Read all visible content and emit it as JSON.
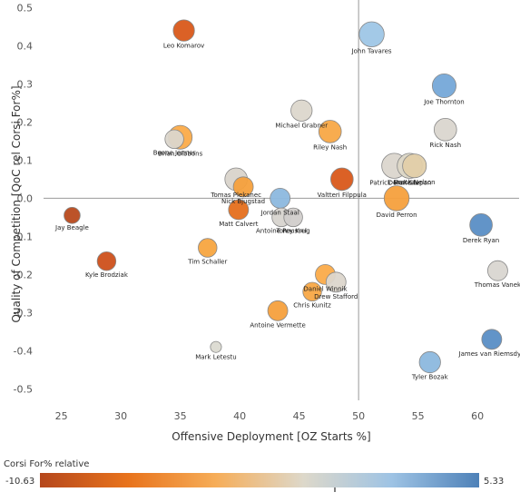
{
  "chart_data": {
    "type": "scatter",
    "xlabel": "Offensive Deployment [OZ Starts %]",
    "ylabel": "Quality of Competition [QoC rel Corsi For%]",
    "xlim": [
      23.5,
      63.5
    ],
    "ylim": [
      -0.53,
      0.52
    ],
    "x_ticks": [
      25,
      30,
      35,
      40,
      45,
      50,
      55,
      60
    ],
    "y_ticks": [
      0.5,
      0.4,
      0.3,
      0.2,
      0.1,
      0.0,
      -0.1,
      -0.2,
      -0.3,
      -0.4,
      -0.5
    ],
    "x_tick_labels": [
      "25",
      "30",
      "35",
      "40",
      "45",
      "50",
      "55",
      "60"
    ],
    "y_tick_labels": [
      "0.5",
      "0.4",
      "0.3",
      "0.2",
      "0.1",
      "0.0",
      "-0.1",
      "-0.2",
      "-0.3",
      "-0.4",
      "-0.5"
    ],
    "reference_lines": {
      "x": 50,
      "y": 0
    },
    "grid": false,
    "color_legend": {
      "title": "Corsi For% relative",
      "min": -10.63,
      "max": 5.33,
      "min_label": "-10.63",
      "max_label": "5.33",
      "colors": [
        "#b5471c",
        "#e8731c",
        "#f6ad58",
        "#ddd8ca",
        "#9ec3e4",
        "#4e81b8"
      ]
    },
    "points": [
      {
        "name": "Leo Komarov",
        "x": 35.3,
        "y": 0.44,
        "color": "#d9581a",
        "size": 0.55
      },
      {
        "name": "John Tavares",
        "x": 51.1,
        "y": 0.43,
        "color": "#9ec6e6",
        "size": 0.7
      },
      {
        "name": "Joe Thornton",
        "x": 57.2,
        "y": 0.295,
        "color": "#75a8d8",
        "size": 0.65
      },
      {
        "name": "Michael Grabner",
        "x": 45.2,
        "y": 0.23,
        "color": "#dcd7cc",
        "size": 0.55
      },
      {
        "name": "Rick Nash",
        "x": 57.3,
        "y": 0.18,
        "color": "#dad6cf",
        "size": 0.6
      },
      {
        "name": "Riley Nash",
        "x": 47.6,
        "y": 0.175,
        "color": "#f8a846",
        "size": 0.6
      },
      {
        "name": "Boone Jenner",
        "x": 34.5,
        "y": 0.155,
        "color": "#dbd6cc",
        "size": 0.45
      },
      {
        "name": "Brian Gibbons",
        "x": 35.0,
        "y": 0.16,
        "color": "#fbab49",
        "size": 0.65
      },
      {
        "name": "Patrick Marleau",
        "x": 53.0,
        "y": 0.085,
        "color": "#dbd6cd",
        "size": 0.7
      },
      {
        "name": "Derek Stepan",
        "x": 54.3,
        "y": 0.085,
        "color": "#dcd7c6",
        "size": 0.7
      },
      {
        "name": "Brock Nelson",
        "x": 54.7,
        "y": 0.085,
        "color": "#e2cfa9",
        "size": 0.65
      },
      {
        "name": "Valtteri Filppula",
        "x": 48.6,
        "y": 0.05,
        "color": "#d9581a",
        "size": 0.6
      },
      {
        "name": "Tomas Plekanec",
        "x": 39.7,
        "y": 0.05,
        "color": "#d9d4cb",
        "size": 0.6
      },
      {
        "name": "Nick Bjugstad",
        "x": 40.3,
        "y": 0.03,
        "color": "#f5a03c",
        "size": 0.5
      },
      {
        "name": "David Perron",
        "x": 53.2,
        "y": 0.0,
        "color": "#f6a03d",
        "size": 0.7
      },
      {
        "name": "Jordan Staal",
        "x": 43.4,
        "y": 0.0,
        "color": "#8cb8de",
        "size": 0.5
      },
      {
        "name": "Matt Calvert",
        "x": 39.9,
        "y": -0.03,
        "color": "#e56f1c",
        "size": 0.5
      },
      {
        "name": "Antoine Roussel",
        "x": 43.5,
        "y": -0.05,
        "color": "#d7d4cf",
        "size": 0.45
      },
      {
        "name": "Torey Krug",
        "x": 44.5,
        "y": -0.05,
        "color": "#d1cecb",
        "size": 0.45
      },
      {
        "name": "Jay Beagle",
        "x": 25.9,
        "y": -0.045,
        "color": "#b84a1d",
        "size": 0.35
      },
      {
        "name": "Derek Ryan",
        "x": 60.3,
        "y": -0.07,
        "color": "#5a8ec5",
        "size": 0.6
      },
      {
        "name": "Kyle Brodziak",
        "x": 28.8,
        "y": -0.165,
        "color": "#cd501b",
        "size": 0.45
      },
      {
        "name": "Tim Schaller",
        "x": 37.3,
        "y": -0.13,
        "color": "#f7a540",
        "size": 0.45
      },
      {
        "name": "Thomas Vanek",
        "x": 61.7,
        "y": -0.19,
        "color": "#d9d6d1",
        "size": 0.5
      },
      {
        "name": "Daniel Winnik",
        "x": 47.2,
        "y": -0.2,
        "color": "#fbab49",
        "size": 0.5
      },
      {
        "name": "Drew Stafford",
        "x": 48.1,
        "y": -0.22,
        "color": "#dcd6cc",
        "size": 0.5
      },
      {
        "name": "Chris Kunitz",
        "x": 46.1,
        "y": -0.245,
        "color": "#f8a846",
        "size": 0.45
      },
      {
        "name": "Antoine Vermette",
        "x": 43.2,
        "y": -0.295,
        "color": "#f6a03d",
        "size": 0.5
      },
      {
        "name": "Mark Letestu",
        "x": 38.0,
        "y": -0.39,
        "color": "#dbdad1",
        "size": 0.15
      },
      {
        "name": "James van Riemsdyk",
        "x": 61.2,
        "y": -0.37,
        "color": "#5a8ec5",
        "size": 0.5
      },
      {
        "name": "Tyler Bozak",
        "x": 56.0,
        "y": -0.43,
        "color": "#8cb8de",
        "size": 0.55
      }
    ]
  }
}
